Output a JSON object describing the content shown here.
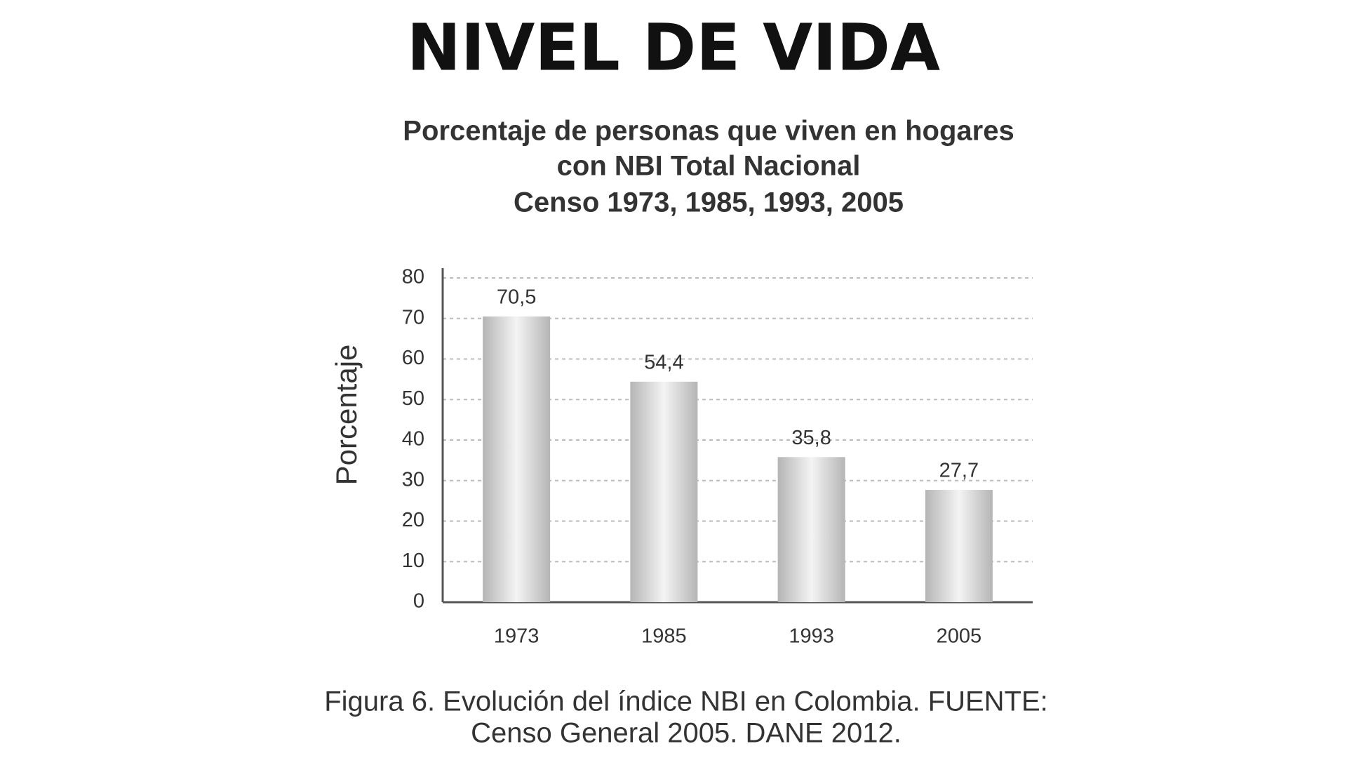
{
  "header": {
    "title": "NIVEL DE VIDA"
  },
  "chart_data": {
    "type": "bar",
    "title": [
      "Porcentaje de personas que viven en hogares",
      "con NBI Total Nacional",
      "Censo 1973, 1985, 1993, 2005"
    ],
    "y_label": "Porcentaje",
    "categories": [
      "1973",
      "1985",
      "1993",
      "2005"
    ],
    "values": [
      70.5,
      54.4,
      35.8,
      27.7
    ],
    "value_labels": [
      "70,5",
      "54,4",
      "35,8",
      "27,7"
    ],
    "color": "#b5b5b5",
    "ylim": [
      0,
      80
    ],
    "yticks": [
      0,
      10,
      20,
      30,
      40,
      50,
      60,
      70,
      80
    ],
    "grid": true
  },
  "caption": [
    "Figura 6. Evolución del índice NBI en Colombia. FUENTE:",
    "Censo General 2005. DANE 2012."
  ]
}
